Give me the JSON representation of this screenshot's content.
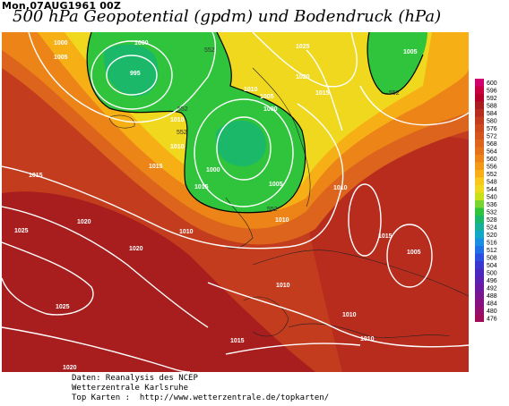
{
  "header": {
    "date": "Mon,07AUG1961 00Z",
    "title": "500 hPa Geopotential (gpdm) und Bodendruck (hPa)"
  },
  "scale": {
    "levels": [
      "600",
      "596",
      "592",
      "588",
      "584",
      "580",
      "576",
      "572",
      "568",
      "564",
      "560",
      "556",
      "552",
      "548",
      "544",
      "540",
      "536",
      "532",
      "528",
      "524",
      "520",
      "516",
      "512",
      "508",
      "504",
      "500",
      "496",
      "492",
      "488",
      "484",
      "480",
      "476"
    ],
    "colors": [
      "#d0006e",
      "#c80040",
      "#b4002a",
      "#a81e1e",
      "#b82c1e",
      "#c43c1e",
      "#cc4a1c",
      "#d4561c",
      "#dc641c",
      "#e4721a",
      "#ec8418",
      "#f29a16",
      "#f6b016",
      "#f8c81a",
      "#f0d81e",
      "#c8e018",
      "#7ad430",
      "#30c43c",
      "#1ab868",
      "#16b09a",
      "#12a8c8",
      "#1a8ee0",
      "#2070e8",
      "#2a4ee0",
      "#3a36d0",
      "#4a28c0",
      "#5a20b0",
      "#6a1aa0",
      "#7a1690",
      "#881080",
      "#94106e",
      "#a00c5a"
    ]
  },
  "map": {
    "isobar_labels": [
      "1000",
      "1005",
      "995",
      "1000",
      "1025",
      "1020",
      "1005",
      "1010",
      "1005",
      "1015",
      "1000",
      "1010",
      "1010",
      "1000",
      "1005",
      "1010",
      "1015",
      "1015",
      "1020",
      "1025",
      "1020",
      "1010",
      "1025",
      "1010",
      "1010",
      "1015",
      "1005",
      "1010",
      "1015",
      "1020",
      "1010",
      "1015"
    ],
    "geopotential_labels": [
      "552",
      "552",
      "552",
      "552",
      "552"
    ]
  },
  "footer": {
    "line1": "Daten: Reanalysis des NCEP",
    "line2": "Wetterzentrale Karlsruhe",
    "line3": "Top Karten :  http://www.wetterzentrale.de/topkarten/"
  }
}
